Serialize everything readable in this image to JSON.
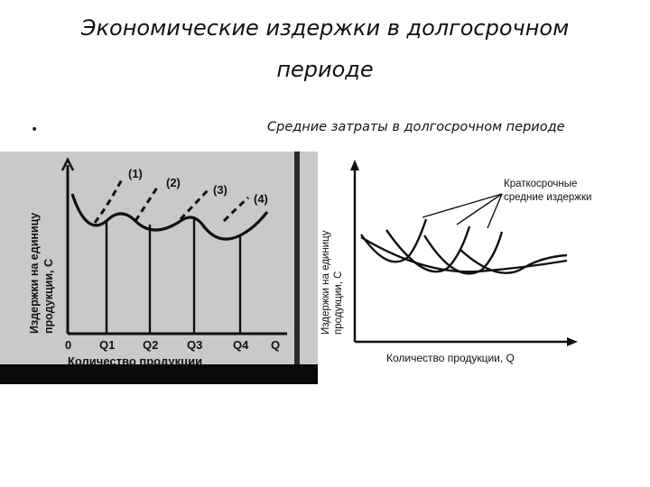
{
  "title": {
    "line1": "Экономические издержки в долгосрочном",
    "line2": "периоде"
  },
  "bullet": "•",
  "subtitle": "Средние затраты в долгосрочном периоде",
  "left_figure": {
    "y_axis_label_line1": "Издержки на единицу",
    "y_axis_label_line2": "продукции, С",
    "x_axis_label": "Количество продукции",
    "curve_labels": [
      "(1)",
      "(2)",
      "(3)",
      "(4)"
    ],
    "x_ticks": [
      "0",
      "Q1",
      "Q2",
      "Q3",
      "Q4",
      "Q"
    ]
  },
  "right_figure": {
    "y_axis_label_line1": "Издержки на единицу",
    "y_axis_label_line2": "продукции, С",
    "x_axis_label": "Количество продукции, Q",
    "annotation_line1": "Краткосрочные",
    "annotation_line2": "средние издержки"
  },
  "colors": {
    "left_bg": "#c9c9c9",
    "ink": "#111111",
    "black_bar": "#0a0a0a"
  }
}
